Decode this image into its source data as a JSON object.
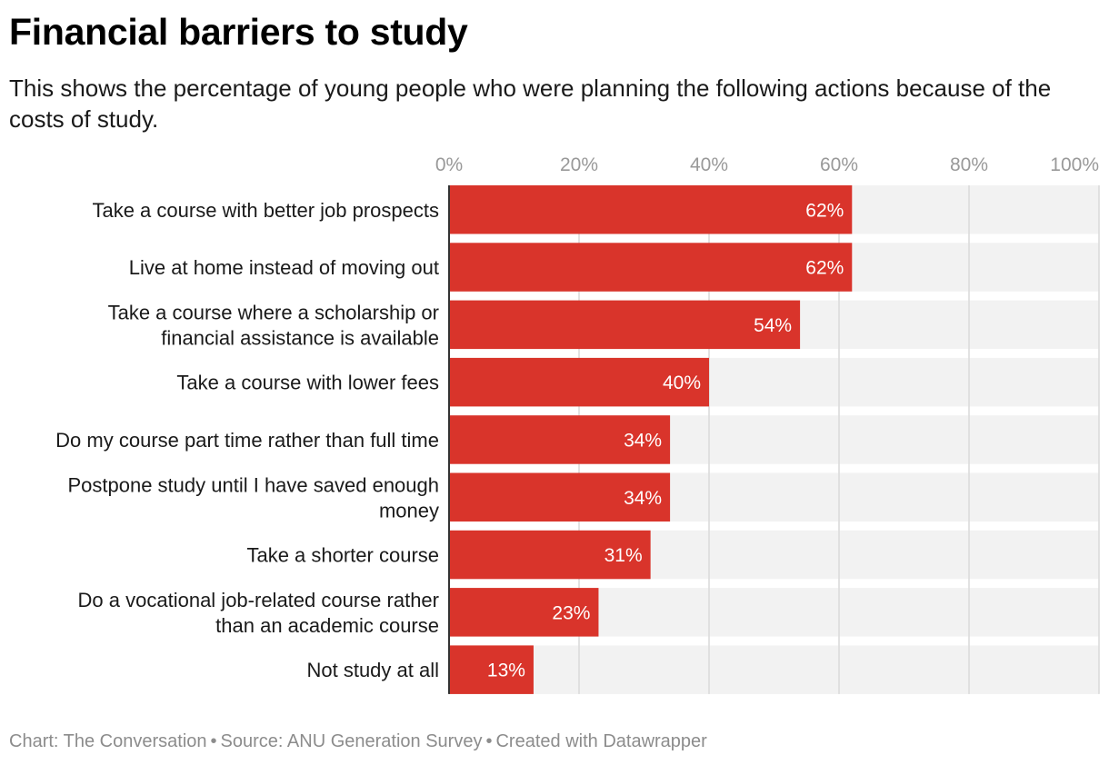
{
  "header": {
    "title": "Financial barriers to study",
    "subtitle": "This shows the percentage of young people who were planning the following actions because of the costs of study."
  },
  "footer": {
    "chart_credit": "Chart: The Conversation",
    "separator": "•",
    "source": "Source: ANU Generation Survey",
    "created_with": "Created with Datawrapper"
  },
  "colors": {
    "bar": "#d9342b",
    "track": "#f2f2f2",
    "grid": "#d9d9d9",
    "axis": "#333333",
    "tick_text": "#999999",
    "value_text": "#ffffff"
  },
  "chart_data": {
    "type": "bar",
    "orientation": "horizontal",
    "categories": [
      [
        "Take a course with better job prospects"
      ],
      [
        "Live at home instead of moving out"
      ],
      [
        "Take a course where a scholarship or",
        "financial assistance is available"
      ],
      [
        "Take a course with lower fees"
      ],
      [
        "Do my course part time rather than full time"
      ],
      [
        "Postpone study until I have saved enough",
        "money"
      ],
      [
        "Take a shorter course"
      ],
      [
        "Do a vocational job-related course rather",
        "than an academic course"
      ],
      [
        "Not study at all"
      ]
    ],
    "values": [
      62,
      62,
      54,
      40,
      34,
      34,
      31,
      23,
      13
    ],
    "value_labels": [
      "62%",
      "62%",
      "54%",
      "40%",
      "34%",
      "34%",
      "31%",
      "23%",
      "13%"
    ],
    "xlim": [
      0,
      100
    ],
    "x_ticks": [
      0,
      20,
      40,
      60,
      80,
      100
    ],
    "x_tick_labels": [
      "0%",
      "20%",
      "40%",
      "60%",
      "80%",
      "100%"
    ],
    "grid": true,
    "tick_position": "top",
    "background_track": true
  }
}
